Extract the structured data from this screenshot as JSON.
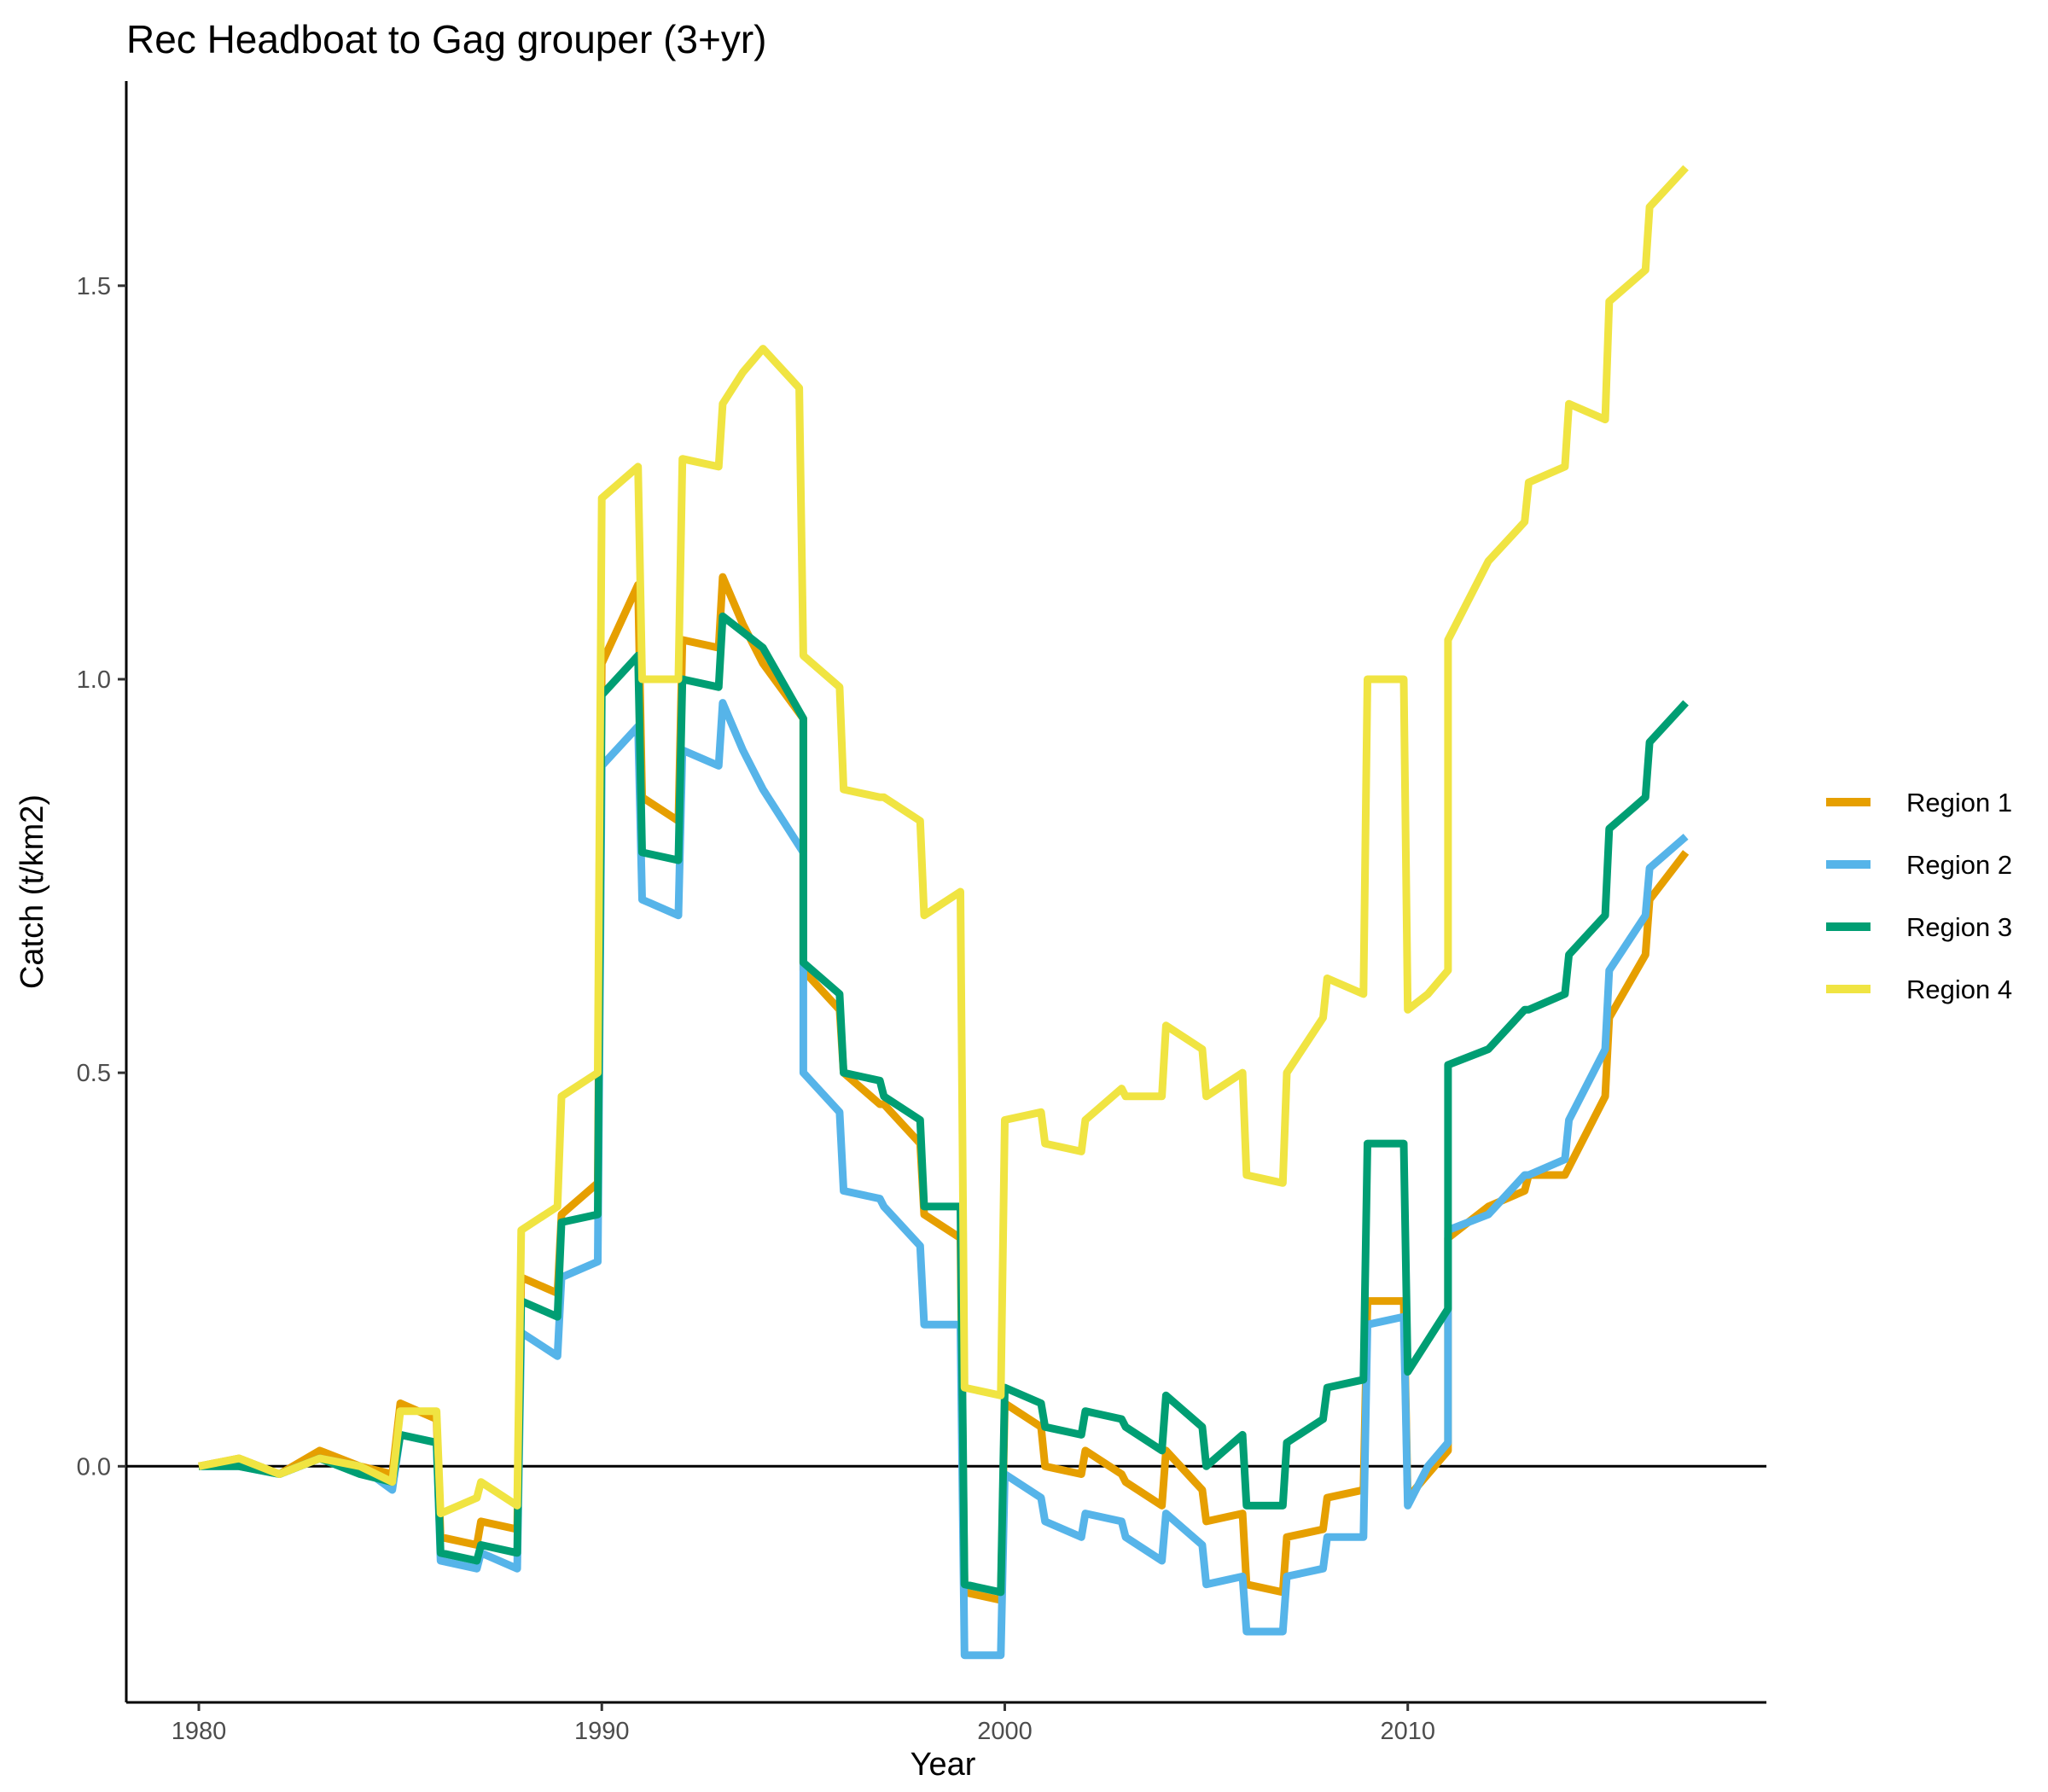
{
  "chart_data": {
    "type": "line",
    "title": "Rec Headboat to Gag grouper (3+yr)",
    "xlabel": "Year",
    "ylabel": "Catch (t/km2)",
    "xlim": [
      1978.2,
      2018.9
    ],
    "ylim": [
      -0.3,
      1.76
    ],
    "x_ticks": [
      1980,
      1990,
      2000,
      2010
    ],
    "x_tick_labels": [
      "1980",
      "1990",
      "2000",
      "2010"
    ],
    "y_ticks": [
      0.0,
      0.5,
      1.0,
      1.5
    ],
    "y_tick_labels": [
      "0.0",
      "0.5",
      "1.0",
      "1.5"
    ],
    "reference_line_y": 0.0,
    "grid": false,
    "legend_position": "right",
    "series": [
      {
        "name": "Region 1",
        "color": "#E69F00",
        "points": [
          [
            1980,
            0.0
          ],
          [
            1981,
            0.01
          ],
          [
            1982,
            -0.01
          ],
          [
            1983,
            0.02
          ],
          [
            1984,
            0.0
          ],
          [
            1984.8,
            -0.01
          ],
          [
            1985,
            0.08
          ],
          [
            1985.9,
            0.06
          ],
          [
            1986,
            -0.09
          ],
          [
            1986.9,
            -0.1
          ],
          [
            1987,
            -0.07
          ],
          [
            1987.9,
            -0.08
          ],
          [
            1988,
            0.24
          ],
          [
            1988.9,
            0.22
          ],
          [
            1989,
            0.32
          ],
          [
            1989.9,
            0.36
          ],
          [
            1990,
            1.02
          ],
          [
            1990.9,
            1.12
          ],
          [
            1991,
            0.85
          ],
          [
            1991.9,
            0.82
          ],
          [
            1992,
            1.05
          ],
          [
            1992.9,
            1.04
          ],
          [
            1993,
            1.13
          ],
          [
            1993.5,
            1.07
          ],
          [
            1994,
            1.02
          ],
          [
            1995,
            0.95
          ],
          [
            1995,
            0.63
          ],
          [
            1995.9,
            0.58
          ],
          [
            1996,
            0.5
          ],
          [
            1996.9,
            0.46
          ],
          [
            1997,
            0.46
          ],
          [
            1997.9,
            0.41
          ],
          [
            1998,
            0.32
          ],
          [
            1998.9,
            0.29
          ],
          [
            1999,
            -0.16
          ],
          [
            1999.9,
            -0.17
          ],
          [
            2000,
            0.08
          ],
          [
            2000.9,
            0.05
          ],
          [
            2001,
            0.0
          ],
          [
            2001.9,
            -0.01
          ],
          [
            2002,
            0.02
          ],
          [
            2002.9,
            -0.01
          ],
          [
            2003,
            -0.02
          ],
          [
            2003.9,
            -0.05
          ],
          [
            2004,
            0.02
          ],
          [
            2004.9,
            -0.03
          ],
          [
            2005,
            -0.07
          ],
          [
            2005.9,
            -0.06
          ],
          [
            2006,
            -0.15
          ],
          [
            2006.9,
            -0.16
          ],
          [
            2007,
            -0.09
          ],
          [
            2007.9,
            -0.08
          ],
          [
            2008,
            -0.04
          ],
          [
            2008.9,
            -0.03
          ],
          [
            2009,
            0.21
          ],
          [
            2009.9,
            0.21
          ],
          [
            2010,
            -0.04
          ],
          [
            2010.5,
            -0.01
          ],
          [
            2011,
            0.02
          ],
          [
            2011,
            0.29
          ],
          [
            2012,
            0.33
          ],
          [
            2012.9,
            0.35
          ],
          [
            2013,
            0.37
          ],
          [
            2013.9,
            0.37
          ],
          [
            2014,
            0.38
          ],
          [
            2014.9,
            0.47
          ],
          [
            2015,
            0.57
          ],
          [
            2015.9,
            0.65
          ],
          [
            2016,
            0.72
          ],
          [
            2016.9,
            0.78
          ]
        ]
      },
      {
        "name": "Region 2",
        "color": "#56B4E9",
        "points": [
          [
            1980,
            0.0
          ],
          [
            1981,
            0.0
          ],
          [
            1982,
            -0.01
          ],
          [
            1983,
            0.01
          ],
          [
            1984,
            0.0
          ],
          [
            1984.8,
            -0.03
          ],
          [
            1985,
            0.04
          ],
          [
            1985.9,
            0.03
          ],
          [
            1986,
            -0.12
          ],
          [
            1986.9,
            -0.13
          ],
          [
            1987,
            -0.11
          ],
          [
            1987.9,
            -0.13
          ],
          [
            1988,
            0.17
          ],
          [
            1988.9,
            0.14
          ],
          [
            1989,
            0.24
          ],
          [
            1989.9,
            0.26
          ],
          [
            1990,
            0.89
          ],
          [
            1990.9,
            0.94
          ],
          [
            1991,
            0.72
          ],
          [
            1991.9,
            0.7
          ],
          [
            1992,
            0.91
          ],
          [
            1992.9,
            0.89
          ],
          [
            1993,
            0.97
          ],
          [
            1993.5,
            0.91
          ],
          [
            1994,
            0.86
          ],
          [
            1995,
            0.78
          ],
          [
            1995,
            0.5
          ],
          [
            1995.9,
            0.45
          ],
          [
            1996,
            0.35
          ],
          [
            1996.9,
            0.34
          ],
          [
            1997,
            0.33
          ],
          [
            1997.9,
            0.28
          ],
          [
            1998,
            0.18
          ],
          [
            1998.9,
            0.18
          ],
          [
            1999,
            -0.24
          ],
          [
            1999.9,
            -0.24
          ],
          [
            2000,
            -0.01
          ],
          [
            2000.9,
            -0.04
          ],
          [
            2001,
            -0.07
          ],
          [
            2001.9,
            -0.09
          ],
          [
            2002,
            -0.06
          ],
          [
            2002.9,
            -0.07
          ],
          [
            2003,
            -0.09
          ],
          [
            2003.9,
            -0.12
          ],
          [
            2004,
            -0.06
          ],
          [
            2004.9,
            -0.1
          ],
          [
            2005,
            -0.15
          ],
          [
            2005.9,
            -0.14
          ],
          [
            2006,
            -0.21
          ],
          [
            2006.9,
            -0.21
          ],
          [
            2007,
            -0.14
          ],
          [
            2007.9,
            -0.13
          ],
          [
            2008,
            -0.09
          ],
          [
            2008.9,
            -0.09
          ],
          [
            2009,
            0.18
          ],
          [
            2009.9,
            0.19
          ],
          [
            2010,
            -0.05
          ],
          [
            2010.5,
            0.0
          ],
          [
            2011,
            0.03
          ],
          [
            2011,
            0.3
          ],
          [
            2012,
            0.32
          ],
          [
            2012.9,
            0.37
          ],
          [
            2013,
            0.37
          ],
          [
            2013.9,
            0.39
          ],
          [
            2014,
            0.44
          ],
          [
            2014.9,
            0.53
          ],
          [
            2015,
            0.63
          ],
          [
            2015.9,
            0.7
          ],
          [
            2016,
            0.76
          ],
          [
            2016.9,
            0.8
          ]
        ]
      },
      {
        "name": "Region 3",
        "color": "#009E73",
        "points": [
          [
            1980,
            0.0
          ],
          [
            1981,
            0.0
          ],
          [
            1982,
            -0.01
          ],
          [
            1983,
            0.01
          ],
          [
            1984,
            -0.01
          ],
          [
            1984.8,
            -0.02
          ],
          [
            1985,
            0.04
          ],
          [
            1985.9,
            0.03
          ],
          [
            1986,
            -0.11
          ],
          [
            1986.9,
            -0.12
          ],
          [
            1987,
            -0.1
          ],
          [
            1987.9,
            -0.11
          ],
          [
            1988,
            0.21
          ],
          [
            1988.9,
            0.19
          ],
          [
            1989,
            0.31
          ],
          [
            1989.9,
            0.32
          ],
          [
            1990,
            0.98
          ],
          [
            1990.9,
            1.03
          ],
          [
            1991,
            0.78
          ],
          [
            1991.9,
            0.77
          ],
          [
            1992,
            1.0
          ],
          [
            1992.9,
            0.99
          ],
          [
            1993,
            1.08
          ],
          [
            1993.5,
            1.06
          ],
          [
            1994,
            1.04
          ],
          [
            1995,
            0.95
          ],
          [
            1995,
            0.64
          ],
          [
            1995.9,
            0.6
          ],
          [
            1996,
            0.5
          ],
          [
            1996.9,
            0.49
          ],
          [
            1997,
            0.47
          ],
          [
            1997.9,
            0.44
          ],
          [
            1998,
            0.33
          ],
          [
            1998.9,
            0.33
          ],
          [
            1999,
            -0.15
          ],
          [
            1999.9,
            -0.16
          ],
          [
            2000,
            0.1
          ],
          [
            2000.9,
            0.08
          ],
          [
            2001,
            0.05
          ],
          [
            2001.9,
            0.04
          ],
          [
            2002,
            0.07
          ],
          [
            2002.9,
            0.06
          ],
          [
            2003,
            0.05
          ],
          [
            2003.9,
            0.02
          ],
          [
            2004,
            0.09
          ],
          [
            2004.9,
            0.05
          ],
          [
            2005,
            0.0
          ],
          [
            2005.9,
            0.04
          ],
          [
            2006,
            -0.05
          ],
          [
            2006.9,
            -0.05
          ],
          [
            2007,
            0.03
          ],
          [
            2007.9,
            0.06
          ],
          [
            2008,
            0.1
          ],
          [
            2008.9,
            0.11
          ],
          [
            2009,
            0.41
          ],
          [
            2009.9,
            0.41
          ],
          [
            2010,
            0.12
          ],
          [
            2010.5,
            0.16
          ],
          [
            2011,
            0.2
          ],
          [
            2011,
            0.51
          ],
          [
            2012,
            0.53
          ],
          [
            2012.9,
            0.58
          ],
          [
            2013,
            0.58
          ],
          [
            2013.9,
            0.6
          ],
          [
            2014,
            0.65
          ],
          [
            2014.9,
            0.7
          ],
          [
            2015,
            0.81
          ],
          [
            2015.9,
            0.85
          ],
          [
            2016,
            0.92
          ],
          [
            2016.9,
            0.97
          ]
        ]
      },
      {
        "name": "Region 4",
        "color": "#F0E442",
        "points": [
          [
            1980,
            0.0
          ],
          [
            1981,
            0.01
          ],
          [
            1982,
            -0.01
          ],
          [
            1983,
            0.01
          ],
          [
            1984,
            0.0
          ],
          [
            1984.8,
            -0.02
          ],
          [
            1985,
            0.07
          ],
          [
            1985.9,
            0.07
          ],
          [
            1986,
            -0.06
          ],
          [
            1986.9,
            -0.04
          ],
          [
            1987,
            -0.02
          ],
          [
            1987.9,
            -0.05
          ],
          [
            1988,
            0.3
          ],
          [
            1988.9,
            0.33
          ],
          [
            1989,
            0.47
          ],
          [
            1989.9,
            0.5
          ],
          [
            1990,
            1.23
          ],
          [
            1990.9,
            1.27
          ],
          [
            1991,
            1.0
          ],
          [
            1991.9,
            1.0
          ],
          [
            1992,
            1.28
          ],
          [
            1992.9,
            1.27
          ],
          [
            1993,
            1.35
          ],
          [
            1993.5,
            1.39
          ],
          [
            1994,
            1.42
          ],
          [
            1994.9,
            1.37
          ],
          [
            1995,
            1.03
          ],
          [
            1995.9,
            0.99
          ],
          [
            1996,
            0.86
          ],
          [
            1996.9,
            0.85
          ],
          [
            1997,
            0.85
          ],
          [
            1997.9,
            0.82
          ],
          [
            1998,
            0.7
          ],
          [
            1998.9,
            0.73
          ],
          [
            1999,
            0.1
          ],
          [
            1999.9,
            0.09
          ],
          [
            2000,
            0.44
          ],
          [
            2000.9,
            0.45
          ],
          [
            2001,
            0.41
          ],
          [
            2001.9,
            0.4
          ],
          [
            2002,
            0.44
          ],
          [
            2002.9,
            0.48
          ],
          [
            2003,
            0.47
          ],
          [
            2003.9,
            0.47
          ],
          [
            2004,
            0.56
          ],
          [
            2004.9,
            0.53
          ],
          [
            2005,
            0.47
          ],
          [
            2005.9,
            0.5
          ],
          [
            2006,
            0.37
          ],
          [
            2006.9,
            0.36
          ],
          [
            2007,
            0.5
          ],
          [
            2007.9,
            0.57
          ],
          [
            2008,
            0.62
          ],
          [
            2008.9,
            0.6
          ],
          [
            2009,
            1.0
          ],
          [
            2009.9,
            1.0
          ],
          [
            2010,
            0.58
          ],
          [
            2010.5,
            0.6
          ],
          [
            2011,
            0.63
          ],
          [
            2011,
            1.05
          ],
          [
            2012,
            1.15
          ],
          [
            2012.9,
            1.2
          ],
          [
            2013,
            1.25
          ],
          [
            2013.9,
            1.27
          ],
          [
            2014,
            1.35
          ],
          [
            2014.9,
            1.33
          ],
          [
            2015,
            1.48
          ],
          [
            2015.9,
            1.52
          ],
          [
            2016,
            1.6
          ],
          [
            2016.9,
            1.65
          ]
        ]
      }
    ]
  }
}
